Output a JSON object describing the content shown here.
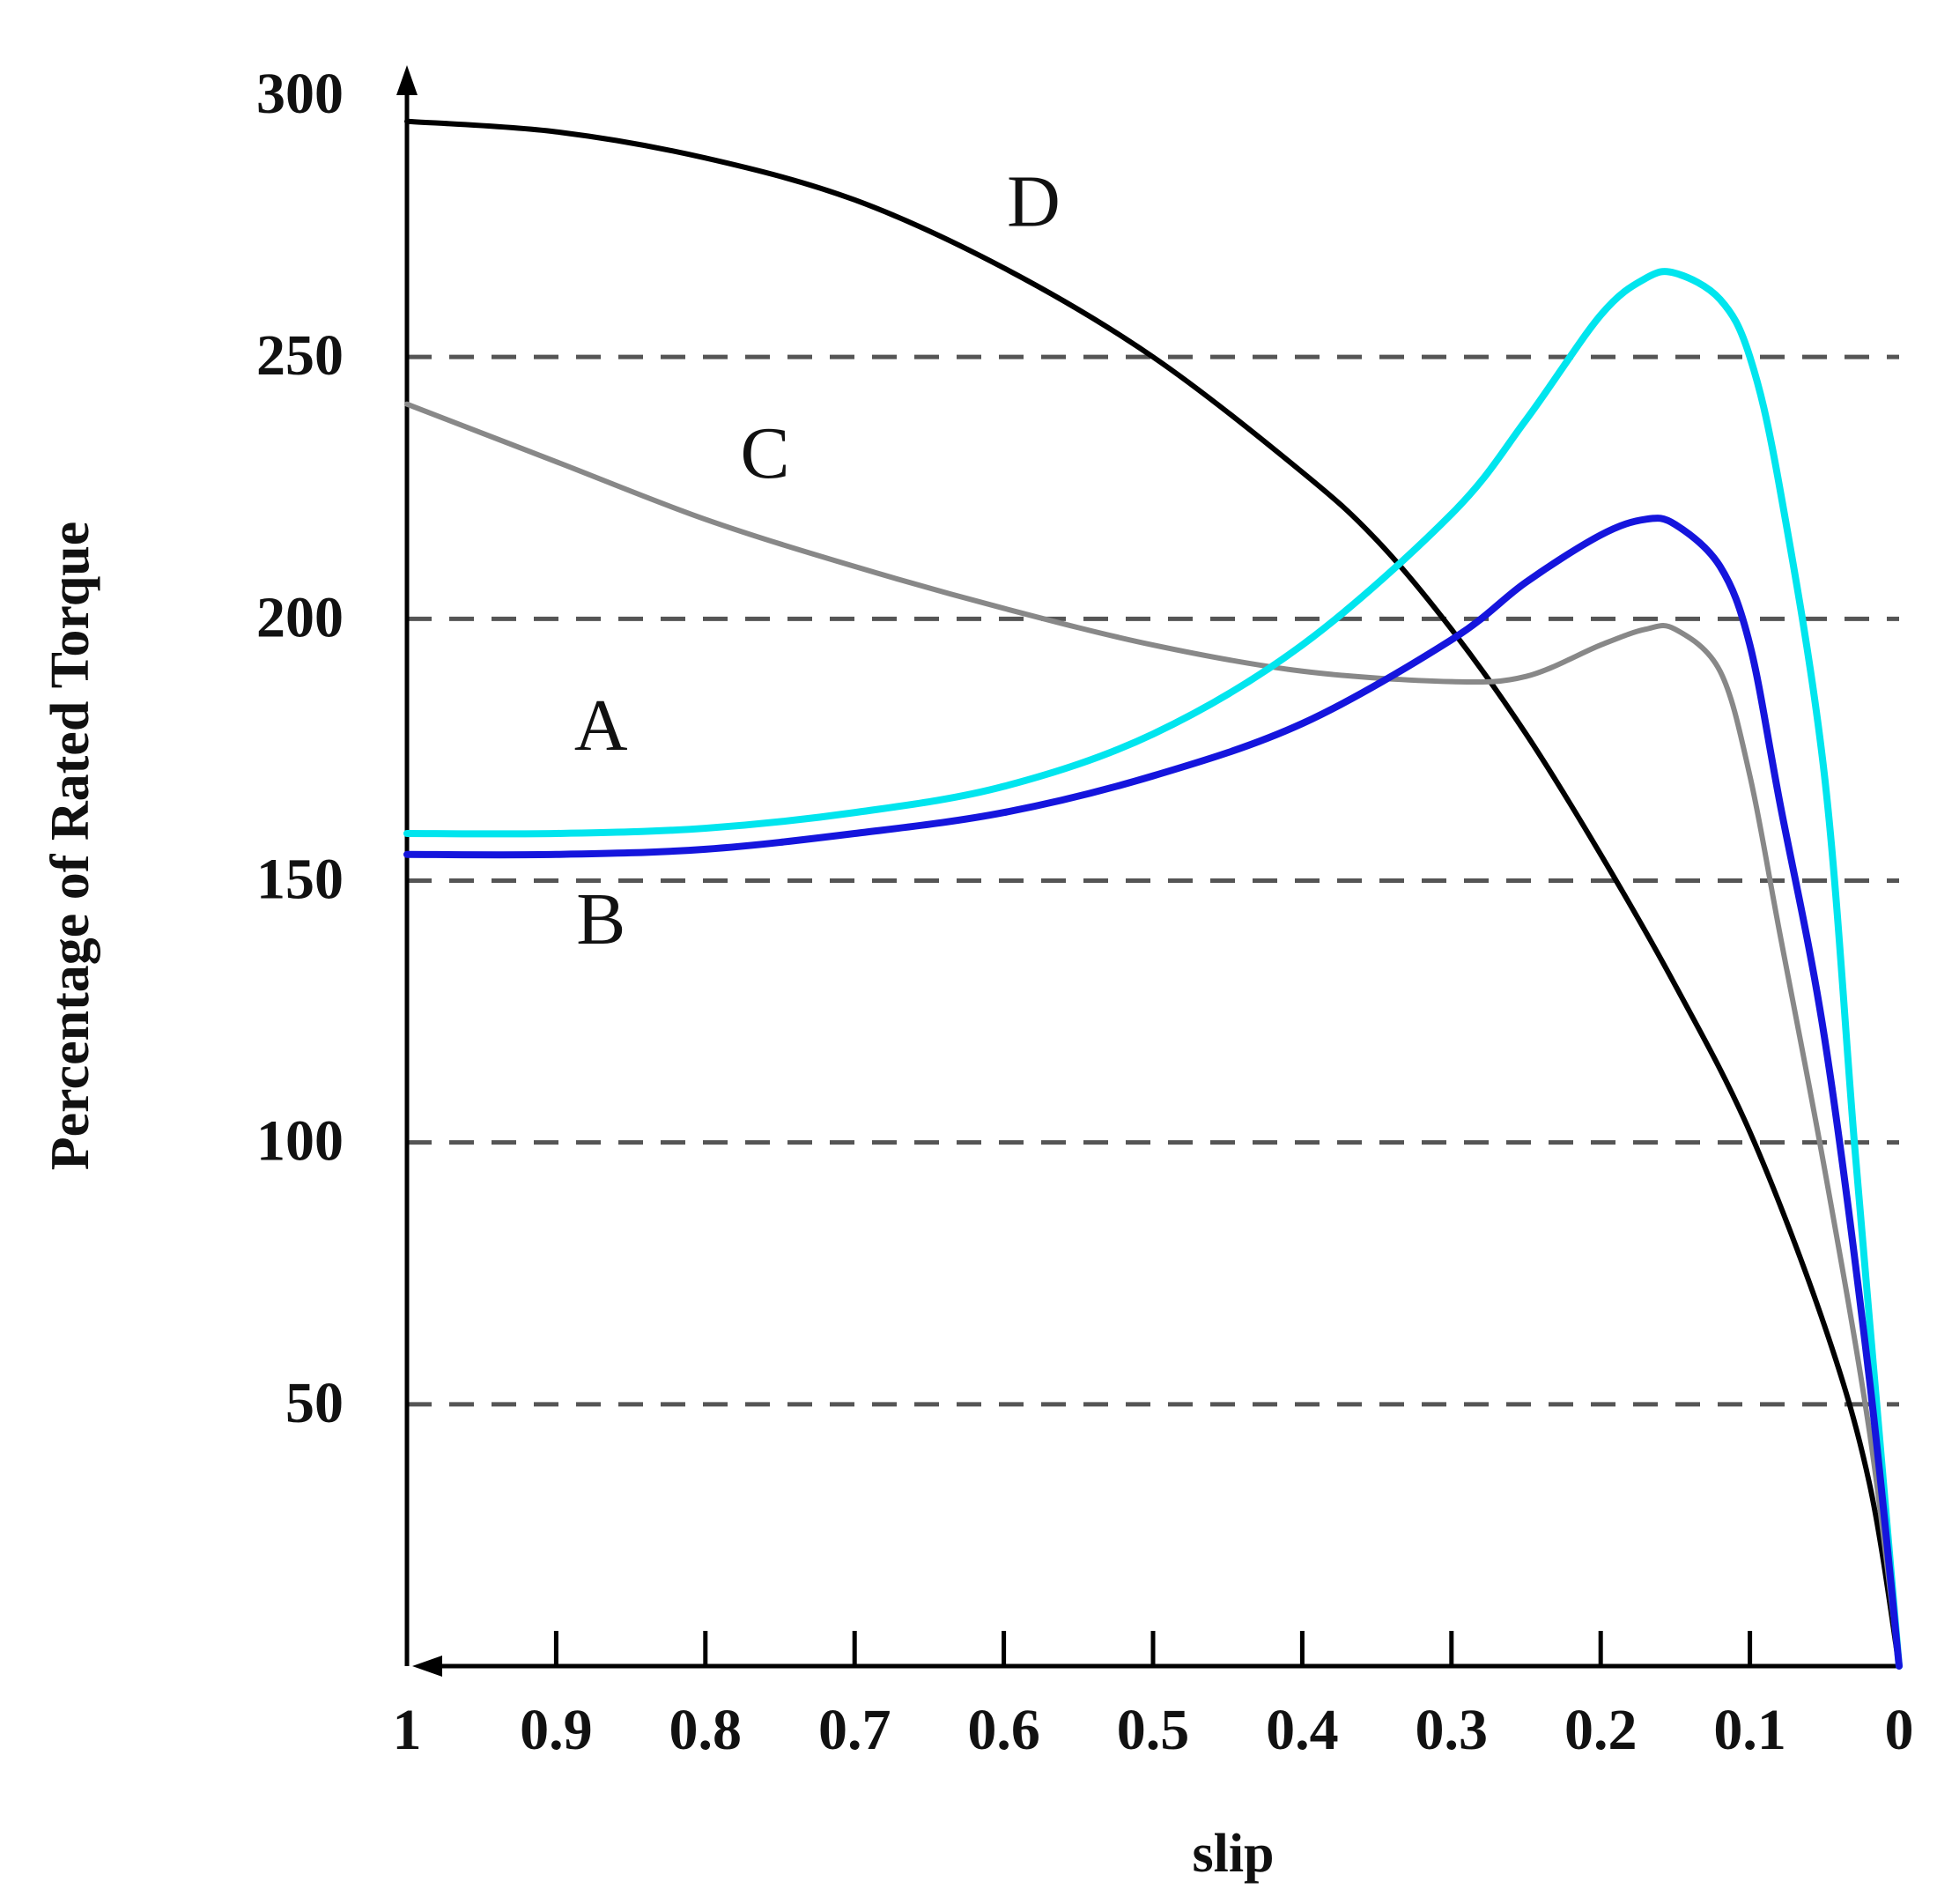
{
  "chart_data": {
    "type": "line",
    "title": "",
    "xlabel": "slip",
    "ylabel": "Percentage of Rated Torque",
    "xlim": [
      1,
      0
    ],
    "ylim": [
      0,
      300
    ],
    "x_ticks": [
      "1",
      "0.9",
      "0.8",
      "0.7",
      "0.6",
      "0.5",
      "0.4",
      "0.3",
      "0.2",
      "0.1",
      "0"
    ],
    "x_tick_values": [
      1,
      0.9,
      0.8,
      0.7,
      0.6,
      0.5,
      0.4,
      0.3,
      0.2,
      0.1,
      0
    ],
    "y_ticks": [
      "50",
      "100",
      "150",
      "200",
      "250",
      "300"
    ],
    "y_tick_values": [
      50,
      100,
      150,
      200,
      250,
      300
    ],
    "gridlines_y": [
      50,
      100,
      150,
      200,
      250
    ],
    "series": [
      {
        "name": "D",
        "color": "#000000",
        "points": [
          [
            1,
            295
          ],
          [
            0.9,
            293
          ],
          [
            0.8,
            288
          ],
          [
            0.7,
            280
          ],
          [
            0.6,
            267
          ],
          [
            0.5,
            250
          ],
          [
            0.4,
            228
          ],
          [
            0.35,
            215
          ],
          [
            0.3,
            198
          ],
          [
            0.25,
            178
          ],
          [
            0.2,
            155
          ],
          [
            0.15,
            130
          ],
          [
            0.1,
            102
          ],
          [
            0.05,
            65
          ],
          [
            0.02,
            35
          ],
          [
            0,
            0
          ]
        ]
      },
      {
        "name": "C",
        "color": "#888888",
        "points": [
          [
            1,
            241
          ],
          [
            0.9,
            230
          ],
          [
            0.8,
            219
          ],
          [
            0.7,
            210
          ],
          [
            0.6,
            202
          ],
          [
            0.5,
            195
          ],
          [
            0.4,
            190
          ],
          [
            0.3,
            188
          ],
          [
            0.25,
            189
          ],
          [
            0.2,
            195
          ],
          [
            0.17,
            198
          ],
          [
            0.15,
            198
          ],
          [
            0.12,
            190
          ],
          [
            0.1,
            170
          ],
          [
            0.08,
            140
          ],
          [
            0.05,
            95
          ],
          [
            0.02,
            45
          ],
          [
            0,
            0
          ]
        ]
      },
      {
        "name": "A",
        "color": "#00e5ee",
        "points": [
          [
            1,
            159
          ],
          [
            0.9,
            159
          ],
          [
            0.8,
            160
          ],
          [
            0.7,
            163
          ],
          [
            0.6,
            168
          ],
          [
            0.5,
            178
          ],
          [
            0.4,
            195
          ],
          [
            0.3,
            220
          ],
          [
            0.25,
            238
          ],
          [
            0.2,
            258
          ],
          [
            0.17,
            265
          ],
          [
            0.15,
            266
          ],
          [
            0.12,
            261
          ],
          [
            0.1,
            250
          ],
          [
            0.08,
            225
          ],
          [
            0.05,
            170
          ],
          [
            0.03,
            100
          ],
          [
            0.015,
            50
          ],
          [
            0,
            0
          ]
        ]
      },
      {
        "name": "B",
        "color": "#1515dd",
        "points": [
          [
            1,
            155
          ],
          [
            0.9,
            155
          ],
          [
            0.8,
            156
          ],
          [
            0.7,
            159
          ],
          [
            0.6,
            163
          ],
          [
            0.5,
            170
          ],
          [
            0.4,
            180
          ],
          [
            0.3,
            196
          ],
          [
            0.25,
            207
          ],
          [
            0.2,
            216
          ],
          [
            0.17,
            219
          ],
          [
            0.15,
            218
          ],
          [
            0.12,
            210
          ],
          [
            0.1,
            195
          ],
          [
            0.08,
            165
          ],
          [
            0.05,
            120
          ],
          [
            0.02,
            55
          ],
          [
            0,
            0
          ]
        ]
      }
    ],
    "annotations": [
      {
        "text": "D",
        "x": 0.58,
        "y": 275
      },
      {
        "text": "C",
        "x": 0.76,
        "y": 227
      },
      {
        "text": "A",
        "x": 0.87,
        "y": 175
      },
      {
        "text": "B",
        "x": 0.87,
        "y": 138
      }
    ]
  }
}
